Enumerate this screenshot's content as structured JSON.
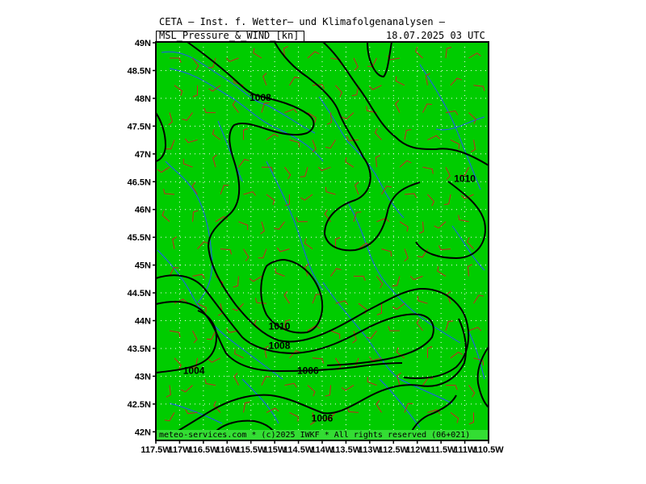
{
  "header": {
    "title": "CETA — Inst. f. Wetter— und Klimafolgenanalysen —",
    "subtitle": "MSL_Pressure_&_WIND_[kn]",
    "timestamp": "18.07.2025 03 UTC"
  },
  "footer": "meteo-services.com * (c)2025 IWKF * All rights reserved (06+021)",
  "map": {
    "background_color": "#00cc00",
    "contour_color": "#000000",
    "coast_color": "#2255ff",
    "wind_barb_color": "#cc2222",
    "grid_color": "#ffffff",
    "lat_labels": [
      "49N",
      "48.5N",
      "48N",
      "47.5N",
      "47N",
      "46.5N",
      "46N",
      "45.5N",
      "45N",
      "44.5N",
      "44N",
      "43.5N",
      "43N",
      "42.5N",
      "42N"
    ],
    "lon_labels": [
      "117.5W",
      "117W",
      "116.5W",
      "116W",
      "115.5W",
      "115W",
      "114.5W",
      "114W",
      "113.5W",
      "113W",
      "112.5W",
      "112W",
      "111.5W",
      "111W",
      "110.5W"
    ],
    "contour_labels": [
      {
        "text": "1008",
        "lon": -115.3,
        "lat": 48.0
      },
      {
        "text": "1010",
        "lon": -111.0,
        "lat": 46.55
      },
      {
        "text": "1010",
        "lon": -114.9,
        "lat": 43.9
      },
      {
        "text": "1008",
        "lon": -114.9,
        "lat": 43.55
      },
      {
        "text": "1006",
        "lon": -114.3,
        "lat": 43.1
      },
      {
        "text": "1004",
        "lon": -116.7,
        "lat": 43.1
      },
      {
        "text": "1006",
        "lon": -114.0,
        "lat": 42.25
      }
    ]
  }
}
